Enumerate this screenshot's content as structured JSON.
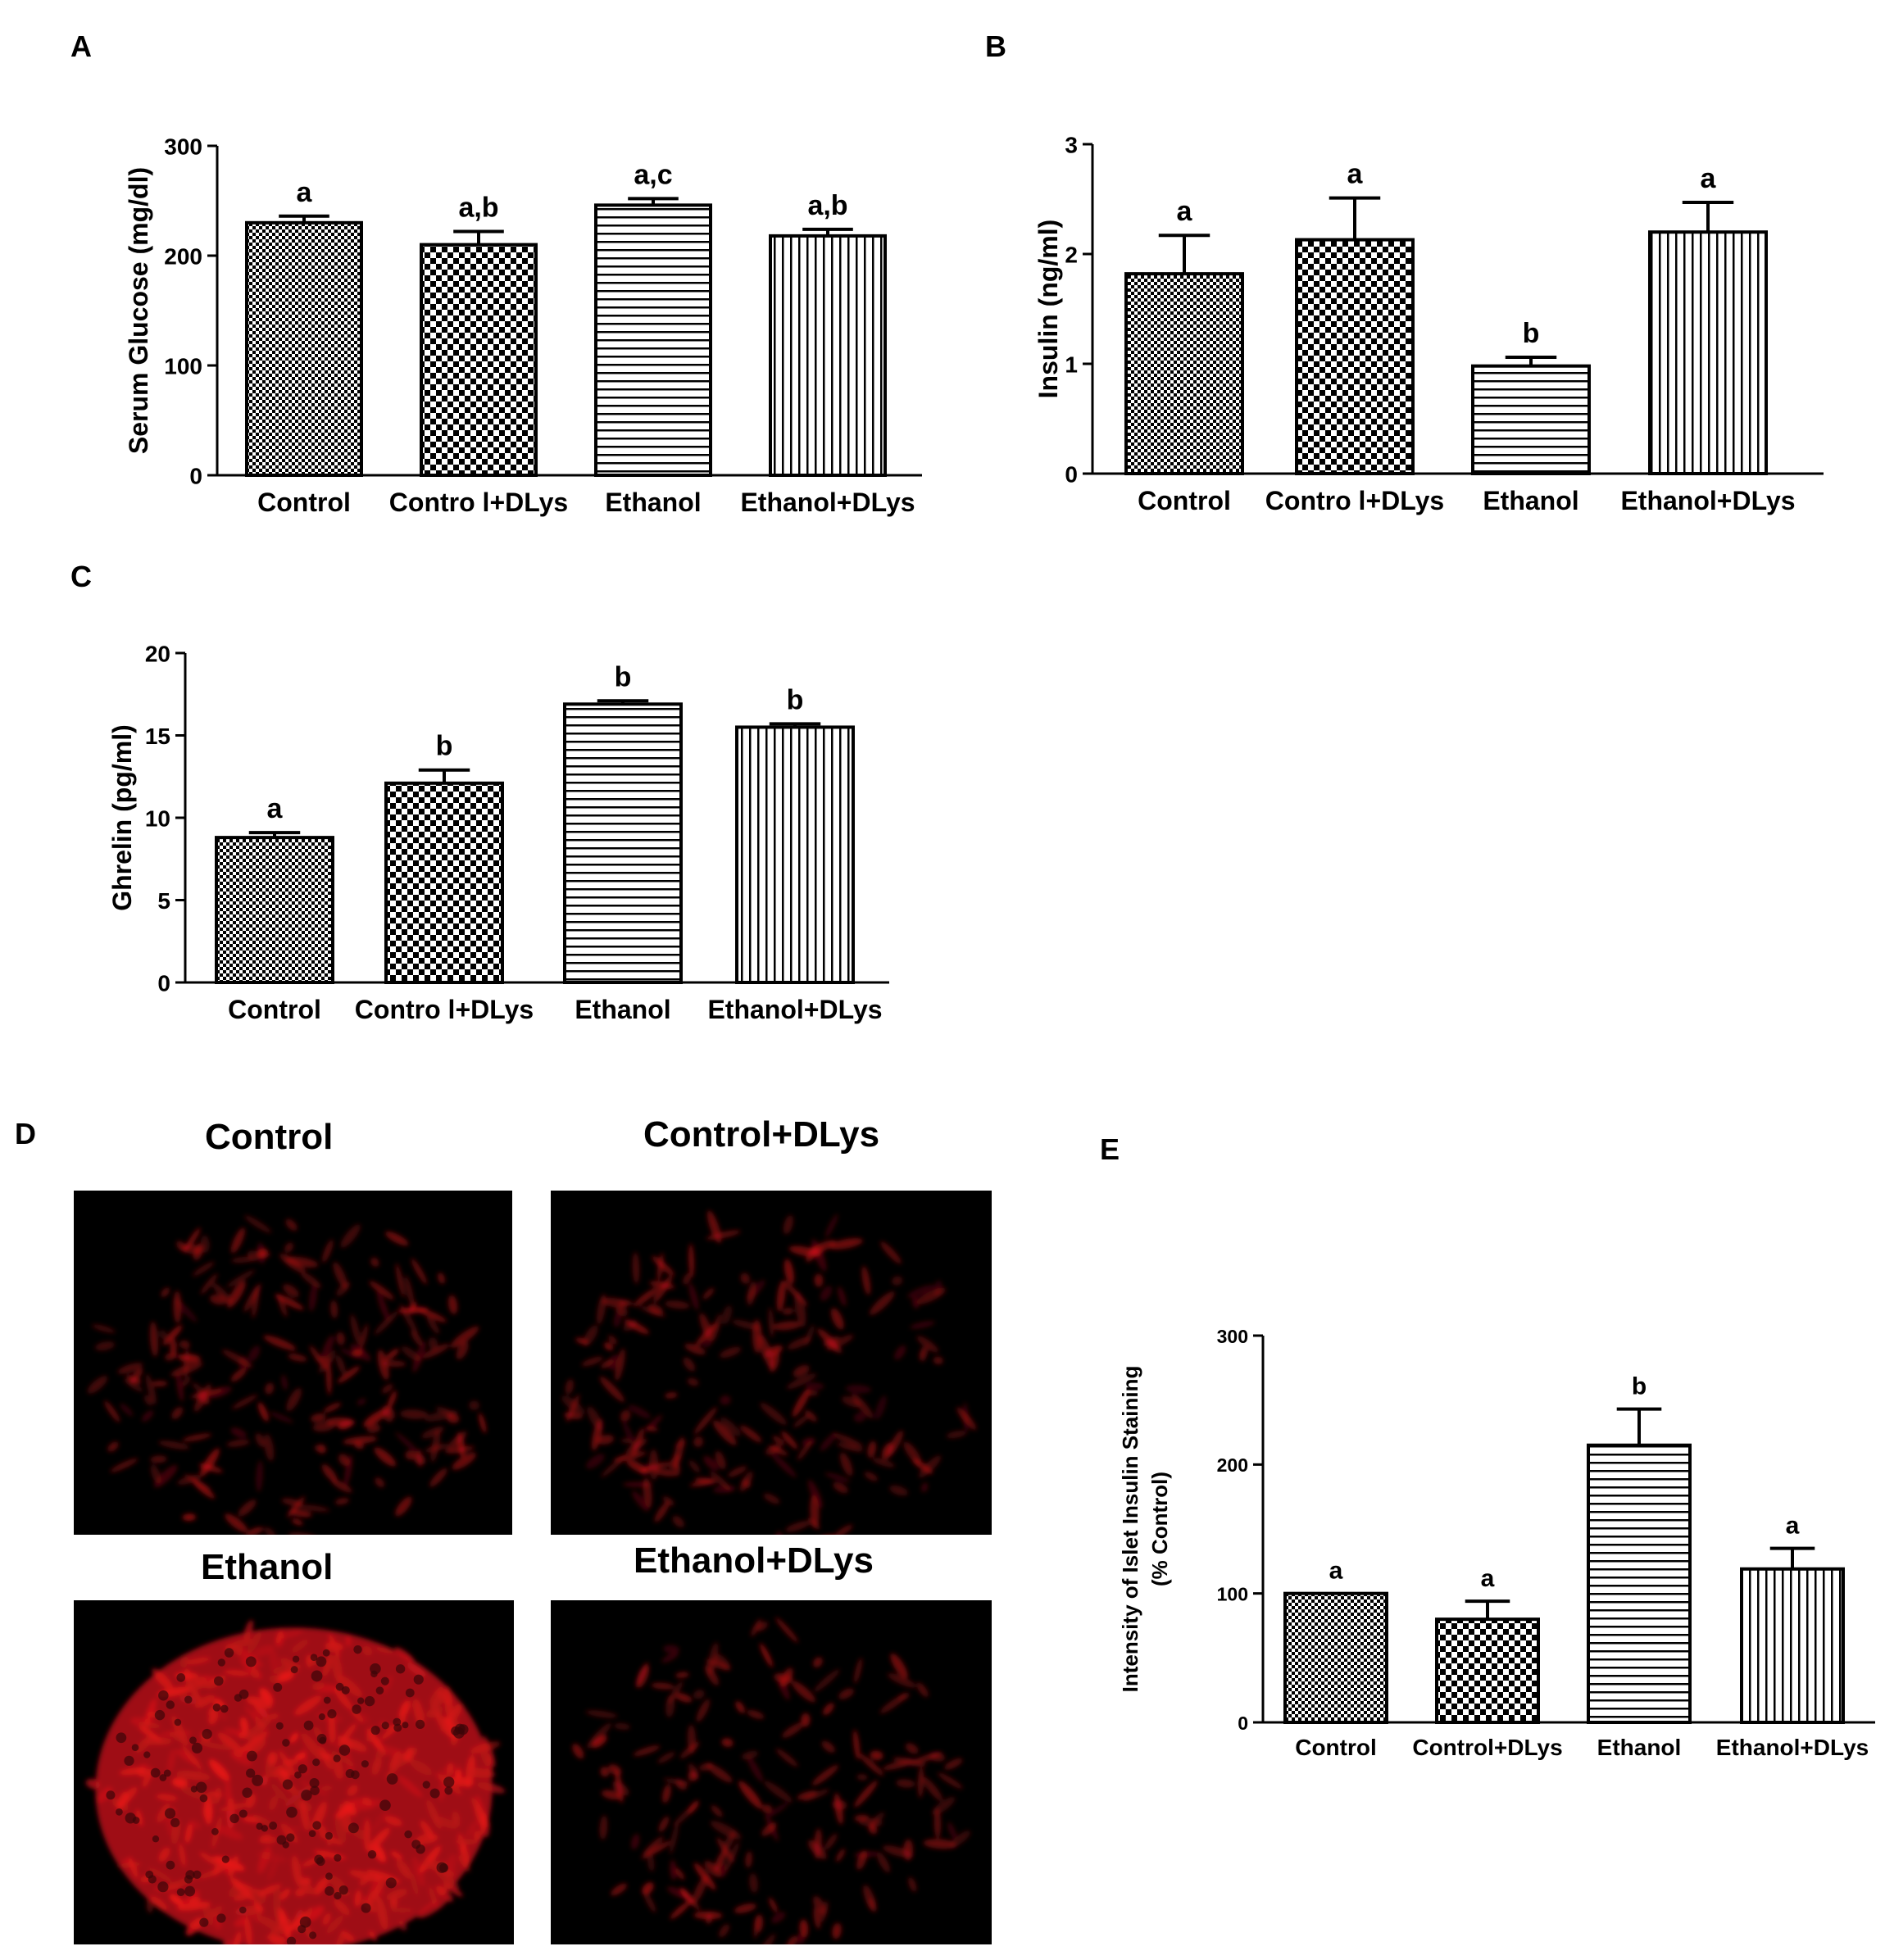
{
  "panels": {
    "A": "A",
    "B": "B",
    "C": "C",
    "D": "D",
    "E": "E"
  },
  "colors": {
    "ink": "#000000",
    "stain": "#d0101a",
    "background": "#000000"
  },
  "chart_data": [
    {
      "id": "A",
      "type": "bar",
      "title": "",
      "xlabel": "",
      "ylabel": "Serum Glucose (mg/dl)",
      "ylim": [
        0,
        300
      ],
      "yticks": [
        "0",
        "100",
        "200",
        "300"
      ],
      "categories": [
        "Control",
        "Contro l+DLys",
        "Ethanol",
        "Ethanol+DLys"
      ],
      "values": [
        230,
        210,
        246,
        218
      ],
      "errors": [
        6,
        12,
        6,
        6
      ],
      "letters": [
        "a",
        "a,b",
        "a,c",
        "a,b"
      ],
      "patterns": [
        "fine-check",
        "coarse-check",
        "horizontal",
        "vertical"
      ]
    },
    {
      "id": "B",
      "type": "bar",
      "title": "",
      "xlabel": "",
      "ylabel": "Insulin (ng/ml)",
      "ylim": [
        0,
        3
      ],
      "yticks": [
        "0",
        "1",
        "2",
        "3"
      ],
      "categories": [
        "Control",
        "Contro l+DLys",
        "Ethanol",
        "Ethanol+DLys"
      ],
      "values": [
        1.82,
        2.13,
        0.98,
        2.2
      ],
      "errors": [
        0.35,
        0.38,
        0.08,
        0.27
      ],
      "letters": [
        "a",
        "a",
        "b",
        "a"
      ],
      "patterns": [
        "fine-check",
        "coarse-check",
        "horizontal",
        "vertical"
      ]
    },
    {
      "id": "C",
      "type": "bar",
      "title": "",
      "xlabel": "",
      "ylabel": "Ghrelin (pg/ml)",
      "ylim": [
        0,
        20
      ],
      "yticks": [
        "0",
        "5",
        "10",
        "15",
        "20"
      ],
      "categories": [
        "Control",
        "Contro l+DLys",
        "Ethanol",
        "Ethanol+DLys"
      ],
      "values": [
        8.8,
        12.1,
        16.9,
        15.5
      ],
      "errors": [
        0.3,
        0.8,
        0.2,
        0.2
      ],
      "letters": [
        "a",
        "b",
        "b",
        "b"
      ],
      "patterns": [
        "fine-check",
        "coarse-check",
        "horizontal",
        "vertical"
      ]
    },
    {
      "id": "E",
      "type": "bar",
      "title": "",
      "xlabel": "",
      "ylabel": "Intensity of Islet Insulin Staining",
      "ylabel2": "(% Control)",
      "ylim": [
        0,
        300
      ],
      "yticks": [
        "0",
        "100",
        "200",
        "300"
      ],
      "categories": [
        "Control",
        "Control+DLys",
        "Ethanol",
        "Ethanol+DLys"
      ],
      "values": [
        100,
        80,
        215,
        119
      ],
      "errors": [
        0,
        14,
        28,
        16
      ],
      "letters": [
        "a",
        "a",
        "b",
        "a"
      ],
      "patterns": [
        "fine-check",
        "coarse-check",
        "horizontal",
        "vertical"
      ]
    }
  ],
  "micrographs": [
    {
      "title": "Control",
      "intensity": 0.55,
      "density": 0.42
    },
    {
      "title": "Control+DLys",
      "intensity": 0.5,
      "density": 0.4
    },
    {
      "title": "Ethanol",
      "intensity": 0.9,
      "density": 0.95
    },
    {
      "title": "Ethanol+DLys",
      "intensity": 0.55,
      "density": 0.3
    }
  ]
}
